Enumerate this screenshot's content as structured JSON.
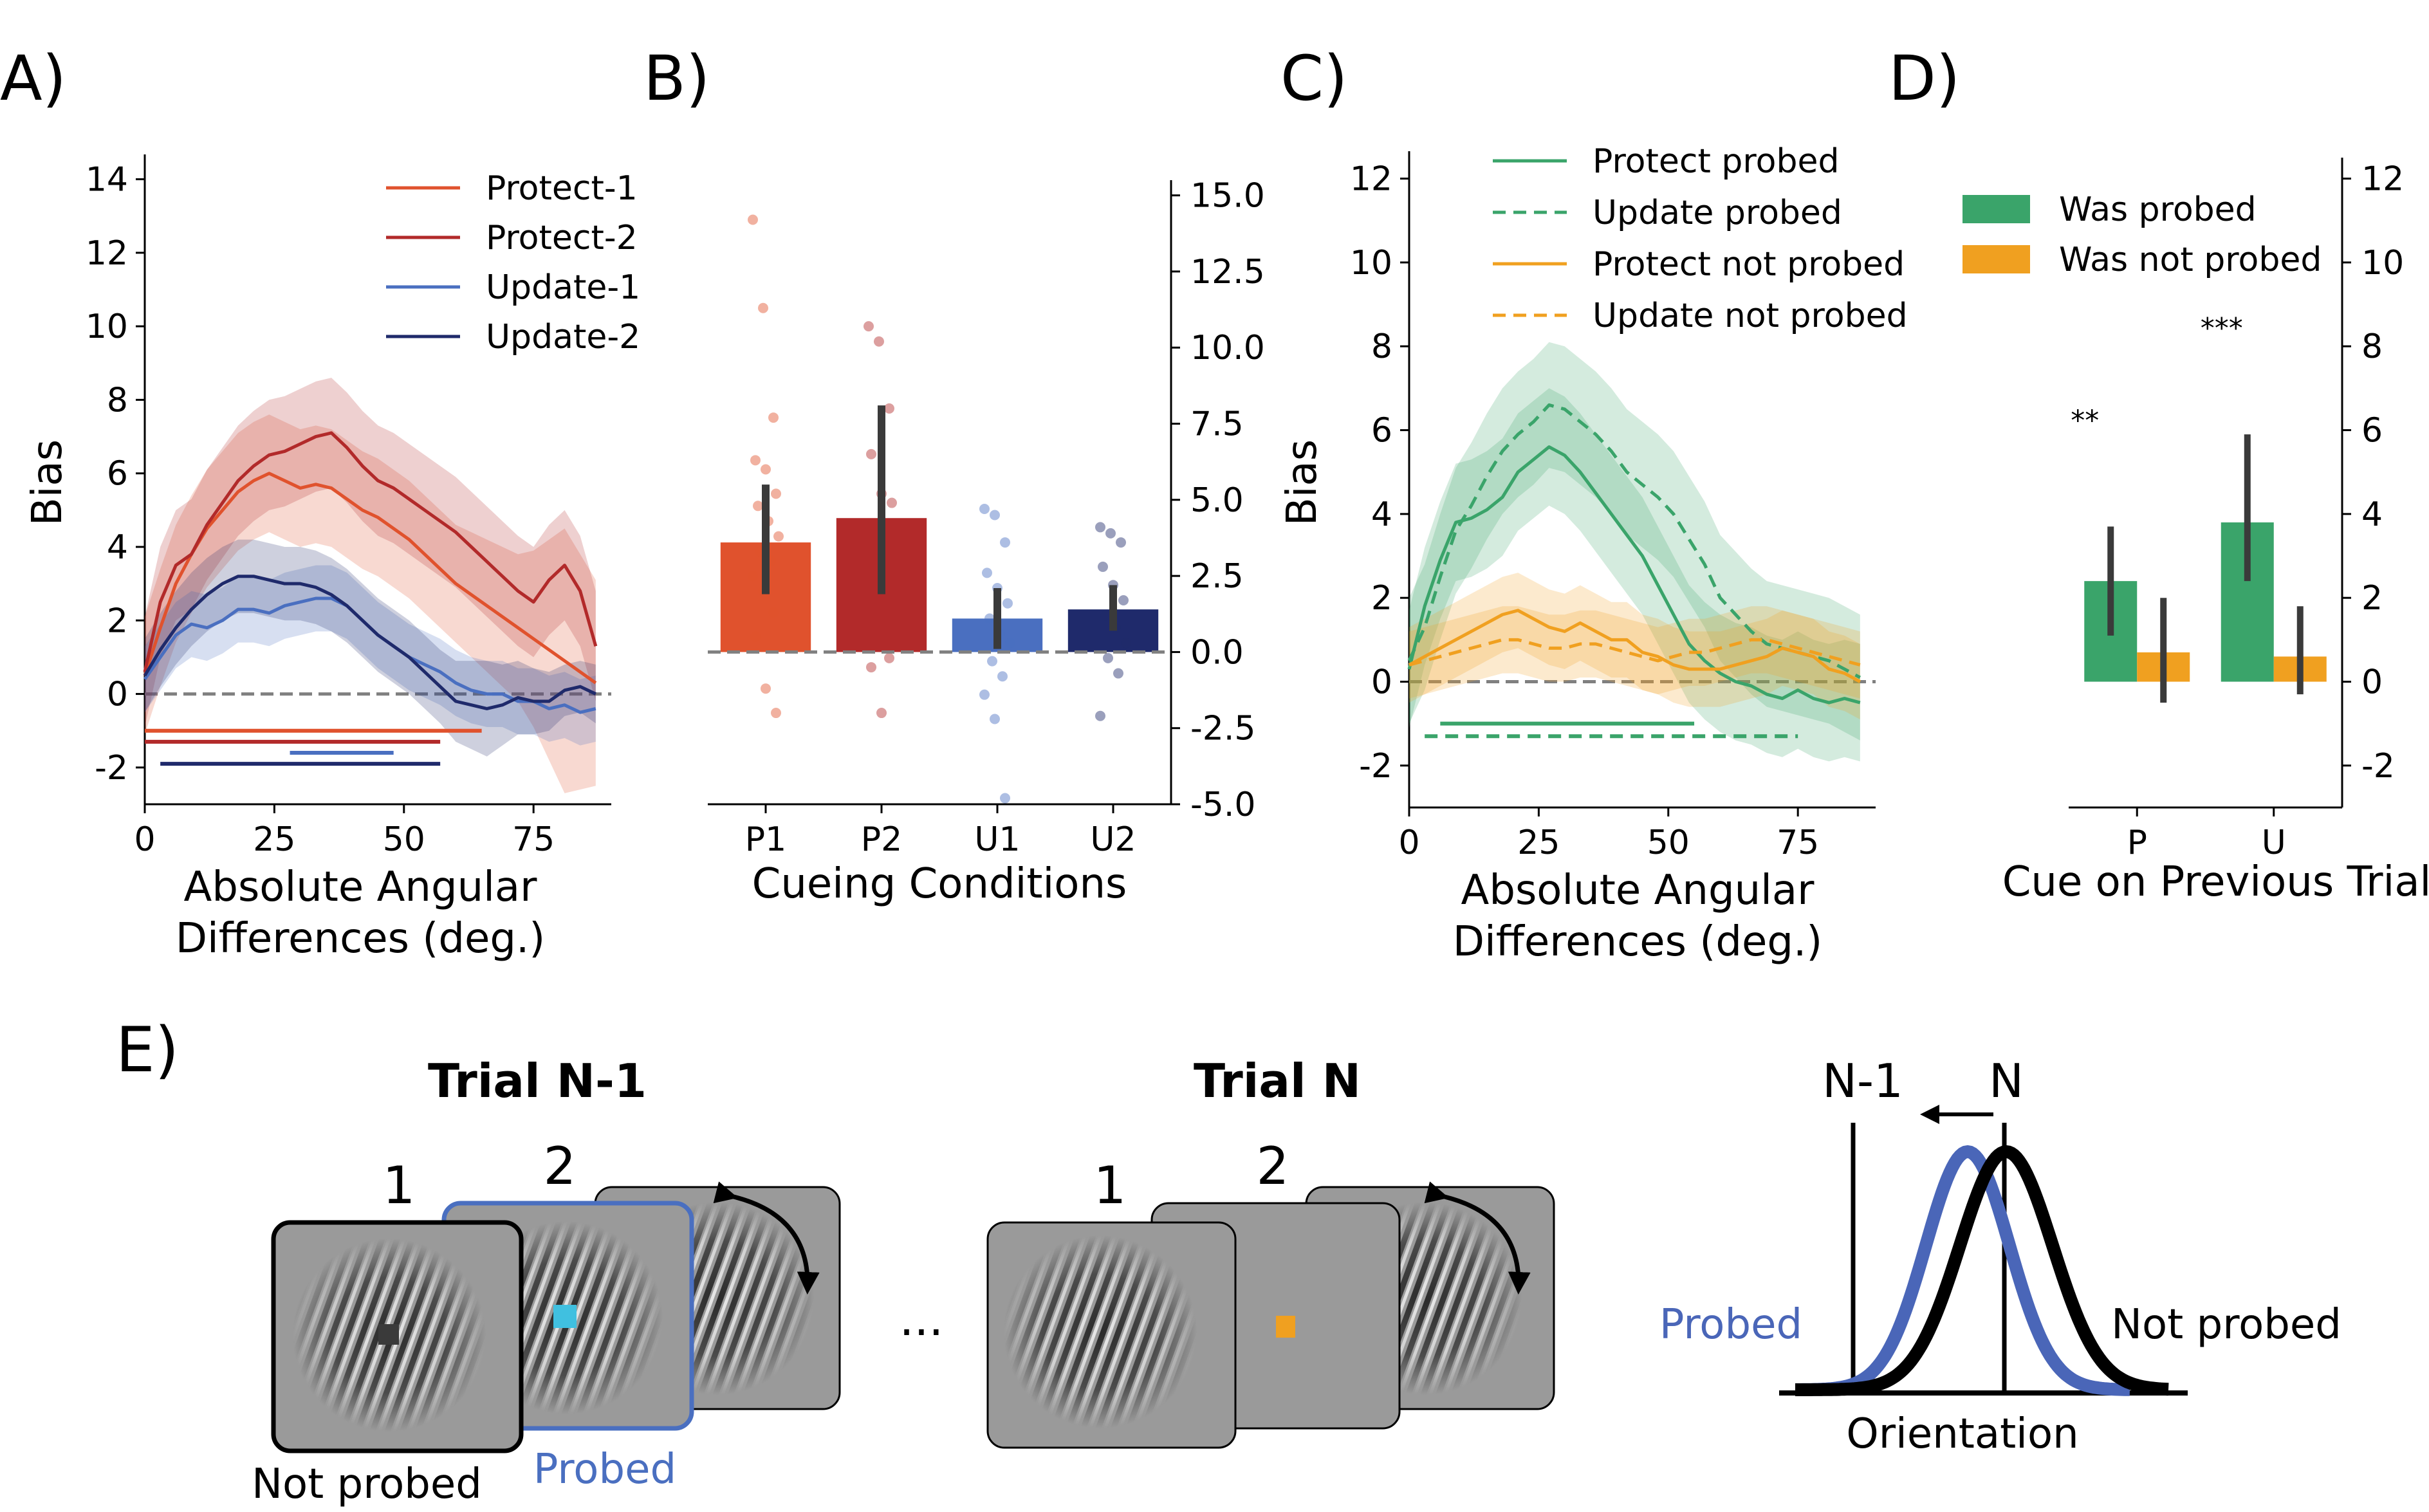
{
  "panels": {
    "A": {
      "label": "A)"
    },
    "B": {
      "label": "B)"
    },
    "C": {
      "label": "C)"
    },
    "D": {
      "label": "D)"
    },
    "E": {
      "label": "E)"
    }
  },
  "colors": {
    "protect1": "#e0522d",
    "protect2": "#b22a2a",
    "update1": "#4a6fc0",
    "update2": "#1f2a6b",
    "green": "#3aa46a",
    "orange": "#f0a020",
    "grey_screen": "#9a9a9a",
    "probed_blue": "#4a66b8",
    "cyan_dot": "#40c0e0",
    "orange_dot": "#f0a020"
  },
  "chart_data": [
    {
      "panel": "A",
      "type": "line",
      "xlabel": "Absolute Angular\nDifferences (deg.)",
      "ylabel": "Bias",
      "xlim": [
        0,
        90
      ],
      "ylim": [
        -3,
        14.5
      ],
      "xticks": [
        0,
        25,
        50,
        75
      ],
      "yticks": [
        -2,
        0,
        2,
        4,
        6,
        8,
        10,
        12,
        14
      ],
      "reference_line_y": 0,
      "legend_position": "top-right",
      "x": [
        0,
        3,
        6,
        9,
        12,
        15,
        18,
        21,
        24,
        27,
        30,
        33,
        36,
        39,
        42,
        45,
        48,
        51,
        54,
        57,
        60,
        63,
        66,
        69,
        72,
        75,
        78,
        81,
        84,
        87
      ],
      "series": [
        {
          "name": "Protect-1",
          "color_key": "protect1",
          "values": [
            0.5,
            1.8,
            3.0,
            3.8,
            4.5,
            5.0,
            5.5,
            5.8,
            6.0,
            5.8,
            5.6,
            5.7,
            5.6,
            5.3,
            5.0,
            4.8,
            4.5,
            4.2,
            3.8,
            3.4,
            3.0,
            2.7,
            2.4,
            2.1,
            1.8,
            1.5,
            1.2,
            0.9,
            0.6,
            0.3
          ],
          "ci": [
            1.6,
            1.6,
            1.6,
            1.6,
            1.6,
            1.6,
            1.6,
            1.6,
            1.6,
            1.6,
            1.6,
            1.6,
            1.6,
            1.6,
            1.6,
            1.6,
            1.6,
            1.6,
            1.6,
            1.6,
            1.6,
            1.7,
            1.8,
            1.9,
            2.0,
            2.4,
            3.0,
            3.6,
            3.2,
            2.8
          ]
        },
        {
          "name": "Protect-2",
          "color_key": "protect2",
          "values": [
            0.6,
            2.5,
            3.5,
            3.8,
            4.6,
            5.2,
            5.8,
            6.2,
            6.5,
            6.6,
            6.8,
            7.0,
            7.1,
            6.7,
            6.2,
            5.8,
            5.6,
            5.3,
            5.0,
            4.7,
            4.4,
            4.0,
            3.6,
            3.2,
            2.8,
            2.5,
            3.1,
            3.5,
            2.8,
            1.3
          ],
          "ci": [
            1.5,
            1.5,
            1.5,
            1.5,
            1.5,
            1.5,
            1.5,
            1.5,
            1.5,
            1.5,
            1.5,
            1.5,
            1.5,
            1.5,
            1.5,
            1.5,
            1.5,
            1.5,
            1.5,
            1.5,
            1.5,
            1.5,
            1.5,
            1.5,
            1.5,
            1.5,
            1.5,
            1.5,
            1.5,
            1.5
          ]
        },
        {
          "name": "Update-1",
          "color_key": "update1",
          "values": [
            0.4,
            1.0,
            1.6,
            1.9,
            1.8,
            2.0,
            2.3,
            2.3,
            2.2,
            2.4,
            2.5,
            2.6,
            2.6,
            2.4,
            2.0,
            1.6,
            1.3,
            1.0,
            0.8,
            0.6,
            0.3,
            0.1,
            0.0,
            0.0,
            -0.2,
            -0.2,
            -0.4,
            -0.3,
            -0.5,
            -0.4
          ],
          "ci": [
            0.9,
            0.9,
            0.9,
            0.9,
            0.9,
            0.9,
            0.9,
            0.9,
            0.9,
            0.9,
            0.9,
            0.9,
            0.9,
            0.9,
            0.9,
            0.9,
            0.9,
            0.9,
            0.9,
            0.9,
            0.9,
            0.9,
            0.9,
            0.9,
            0.9,
            0.9,
            0.9,
            0.9,
            0.9,
            0.9
          ]
        },
        {
          "name": "Update-2",
          "color_key": "update2",
          "values": [
            0.5,
            1.2,
            1.8,
            2.3,
            2.7,
            3.0,
            3.2,
            3.2,
            3.1,
            3.0,
            3.0,
            2.9,
            2.7,
            2.4,
            2.0,
            1.6,
            1.3,
            1.0,
            0.6,
            0.2,
            -0.2,
            -0.3,
            -0.4,
            -0.3,
            -0.1,
            -0.2,
            -0.2,
            0.1,
            0.2,
            0.0
          ],
          "ci": [
            1.0,
            1.0,
            1.0,
            1.0,
            1.0,
            1.0,
            1.0,
            1.0,
            1.0,
            1.0,
            1.0,
            1.0,
            1.0,
            1.0,
            1.0,
            1.0,
            1.0,
            1.0,
            1.0,
            1.0,
            1.1,
            1.2,
            1.3,
            1.1,
            1.0,
            0.9,
            0.8,
            0.7,
            0.7,
            0.8
          ]
        }
      ],
      "significance_lines": [
        {
          "color_key": "protect1",
          "y": -1.0,
          "x_start": 0,
          "x_end": 65
        },
        {
          "color_key": "protect2",
          "y": -1.3,
          "x_start": 0,
          "x_end": 57
        },
        {
          "color_key": "update1",
          "y": -1.6,
          "x_start": 28,
          "x_end": 48
        },
        {
          "color_key": "update2",
          "y": -1.9,
          "x_start": 3,
          "x_end": 57
        }
      ]
    },
    {
      "panel": "B",
      "type": "bar",
      "xlabel": "Cueing Conditions",
      "categories": [
        "P1",
        "P2",
        "U1",
        "U2"
      ],
      "values": [
        3.6,
        4.4,
        1.1,
        1.4
      ],
      "error_low": [
        1.9,
        1.9,
        0.1,
        0.7
      ],
      "error_high": [
        5.5,
        8.1,
        2.1,
        2.2
      ],
      "color_keys": [
        "protect1",
        "protect2",
        "update1",
        "update2"
      ],
      "ylim": [
        -5,
        15.5
      ],
      "yticks": [
        15.0,
        12.5,
        10.0,
        7.5,
        5.0,
        2.5,
        0.0,
        -2.5,
        -5.0
      ],
      "y_axis_side": "right",
      "reference_line_y": 0,
      "points": [
        [
          14.2,
          11.3,
          7.7,
          6.3,
          6.0,
          5.2,
          4.8,
          4.3,
          3.8,
          3.3,
          3.0,
          2.5,
          2.0,
          1.3,
          0.5,
          -1.2,
          -2.0
        ],
        [
          10.7,
          10.2,
          8.0,
          6.5,
          5.2,
          4.9,
          4.0,
          3.6,
          3.1,
          2.6,
          2.2,
          1.3,
          0.2,
          -0.2,
          -0.5,
          -2.0
        ],
        [
          4.7,
          4.5,
          3.6,
          2.6,
          2.1,
          1.6,
          1.1,
          0.6,
          0.3,
          -0.3,
          -0.8,
          -1.4,
          -2.2,
          -4.8
        ],
        [
          4.1,
          3.9,
          3.6,
          2.8,
          2.2,
          1.7,
          1.2,
          0.8,
          0.3,
          -0.2,
          -0.7,
          -2.1
        ]
      ]
    },
    {
      "panel": "C",
      "type": "line",
      "xlabel": "Absolute Angular\nDifferences (deg.)",
      "ylabel": "Bias",
      "xlim": [
        0,
        90
      ],
      "ylim": [
        -3,
        12.5
      ],
      "xticks": [
        0,
        25,
        50,
        75
      ],
      "yticks": [
        -2,
        0,
        2,
        4,
        6,
        8,
        10,
        12
      ],
      "reference_line_y": 0,
      "legend_position": "top-right",
      "x": [
        0,
        3,
        6,
        9,
        12,
        15,
        18,
        21,
        24,
        27,
        30,
        33,
        36,
        39,
        42,
        45,
        48,
        51,
        54,
        57,
        60,
        63,
        66,
        69,
        72,
        75,
        78,
        81,
        84,
        87
      ],
      "series": [
        {
          "name": "Protect probed",
          "color_key": "green",
          "dash": false,
          "values": [
            0.3,
            1.8,
            2.9,
            3.8,
            3.9,
            4.1,
            4.4,
            5.0,
            5.3,
            5.6,
            5.4,
            5.0,
            4.5,
            4.0,
            3.5,
            3.0,
            2.3,
            1.6,
            0.9,
            0.5,
            0.2,
            0.0,
            -0.1,
            -0.3,
            -0.4,
            -0.2,
            -0.4,
            -0.5,
            -0.4,
            -0.5
          ],
          "ci": [
            1.4,
            1.4,
            1.4,
            1.4,
            1.4,
            1.4,
            1.4,
            1.4,
            1.4,
            1.4,
            1.4,
            1.4,
            1.4,
            1.4,
            1.4,
            1.4,
            1.4,
            1.4,
            1.4,
            1.4,
            1.4,
            1.4,
            1.4,
            1.4,
            1.4,
            1.4,
            1.4,
            1.4,
            1.4,
            1.4
          ]
        },
        {
          "name": "Update probed",
          "color_key": "green",
          "dash": true,
          "values": [
            0.5,
            1.3,
            2.5,
            3.6,
            4.2,
            4.9,
            5.5,
            5.9,
            6.2,
            6.6,
            6.5,
            6.2,
            5.9,
            5.5,
            5.0,
            4.7,
            4.4,
            4.0,
            3.4,
            2.8,
            2.0,
            1.6,
            1.2,
            0.9,
            0.8,
            0.7,
            0.6,
            0.5,
            0.3,
            0.1
          ],
          "ci": [
            1.5,
            1.5,
            1.5,
            1.5,
            1.5,
            1.5,
            1.5,
            1.5,
            1.5,
            1.5,
            1.5,
            1.5,
            1.5,
            1.5,
            1.5,
            1.5,
            1.5,
            1.5,
            1.5,
            1.5,
            1.5,
            1.5,
            1.5,
            1.5,
            1.5,
            1.5,
            1.5,
            1.5,
            1.5,
            1.5
          ]
        },
        {
          "name": "Protect not probed",
          "color_key": "orange",
          "dash": false,
          "values": [
            0.4,
            0.6,
            0.8,
            1.0,
            1.2,
            1.4,
            1.6,
            1.7,
            1.5,
            1.3,
            1.2,
            1.4,
            1.2,
            1.0,
            1.0,
            0.7,
            0.6,
            0.4,
            0.3,
            0.3,
            0.3,
            0.4,
            0.5,
            0.6,
            0.8,
            0.7,
            0.6,
            0.3,
            0.2,
            0.0
          ],
          "ci": [
            0.9,
            0.9,
            0.9,
            0.9,
            0.9,
            0.9,
            0.9,
            0.9,
            0.9,
            0.9,
            0.9,
            0.9,
            0.9,
            0.9,
            0.9,
            0.9,
            0.9,
            0.9,
            0.9,
            0.9,
            0.9,
            0.9,
            0.9,
            0.9,
            0.9,
            0.9,
            0.9,
            0.9,
            0.9,
            0.9
          ]
        },
        {
          "name": "Update not probed",
          "color_key": "orange",
          "dash": true,
          "values": [
            0.4,
            0.5,
            0.6,
            0.7,
            0.8,
            0.9,
            1.0,
            1.0,
            0.9,
            0.8,
            0.8,
            0.9,
            0.9,
            0.8,
            0.7,
            0.6,
            0.5,
            0.6,
            0.7,
            0.7,
            0.8,
            0.9,
            1.0,
            1.0,
            0.9,
            0.8,
            0.7,
            0.6,
            0.5,
            0.4
          ],
          "ci": [
            0.8,
            0.8,
            0.8,
            0.8,
            0.8,
            0.8,
            0.8,
            0.8,
            0.8,
            0.8,
            0.8,
            0.8,
            0.8,
            0.8,
            0.8,
            0.8,
            0.8,
            0.8,
            0.8,
            0.8,
            0.8,
            0.8,
            0.8,
            0.8,
            0.8,
            0.8,
            0.8,
            0.8,
            0.8,
            0.8
          ]
        }
      ],
      "significance_lines": [
        {
          "color_key": "green",
          "dash": false,
          "y": -1.0,
          "x_start": 6,
          "x_end": 55
        },
        {
          "color_key": "green",
          "dash": true,
          "y": -1.3,
          "x_start": 3,
          "x_end": 75
        }
      ]
    },
    {
      "panel": "D",
      "type": "bar",
      "xlabel": "Cue on Previous Trial",
      "categories": [
        "P",
        "U"
      ],
      "series": [
        {
          "name": "Was probed",
          "color_key": "green",
          "values": [
            2.4,
            3.8
          ],
          "error_low": [
            1.1,
            2.4
          ],
          "error_high": [
            3.7,
            5.9
          ]
        },
        {
          "name": "Was not probed",
          "color_key": "orange",
          "values": [
            0.7,
            0.6
          ],
          "error_low": [
            -0.5,
            -0.3
          ],
          "error_high": [
            2.0,
            1.8
          ]
        }
      ],
      "annotations": [
        "**",
        "***"
      ],
      "ylim": [
        -3,
        12.5
      ],
      "yticks": [
        -2,
        0,
        2,
        4,
        6,
        8,
        10,
        12
      ],
      "y_axis_side": "right",
      "legend_position": "top"
    }
  ],
  "schematic": {
    "trial_prev": {
      "title": "Trial N-1",
      "frame1": "1",
      "frame2": "2",
      "not_probed_label": "Not probed",
      "probed_label": "Probed"
    },
    "ellipsis": "...",
    "trial_curr": {
      "title": "Trial N",
      "frame1": "1",
      "frame2": "2"
    },
    "curve": {
      "label_prev": "N-1",
      "label_curr": "N",
      "probed": "Probed",
      "not_probed": "Not probed",
      "xlabel": "Orientation"
    }
  }
}
